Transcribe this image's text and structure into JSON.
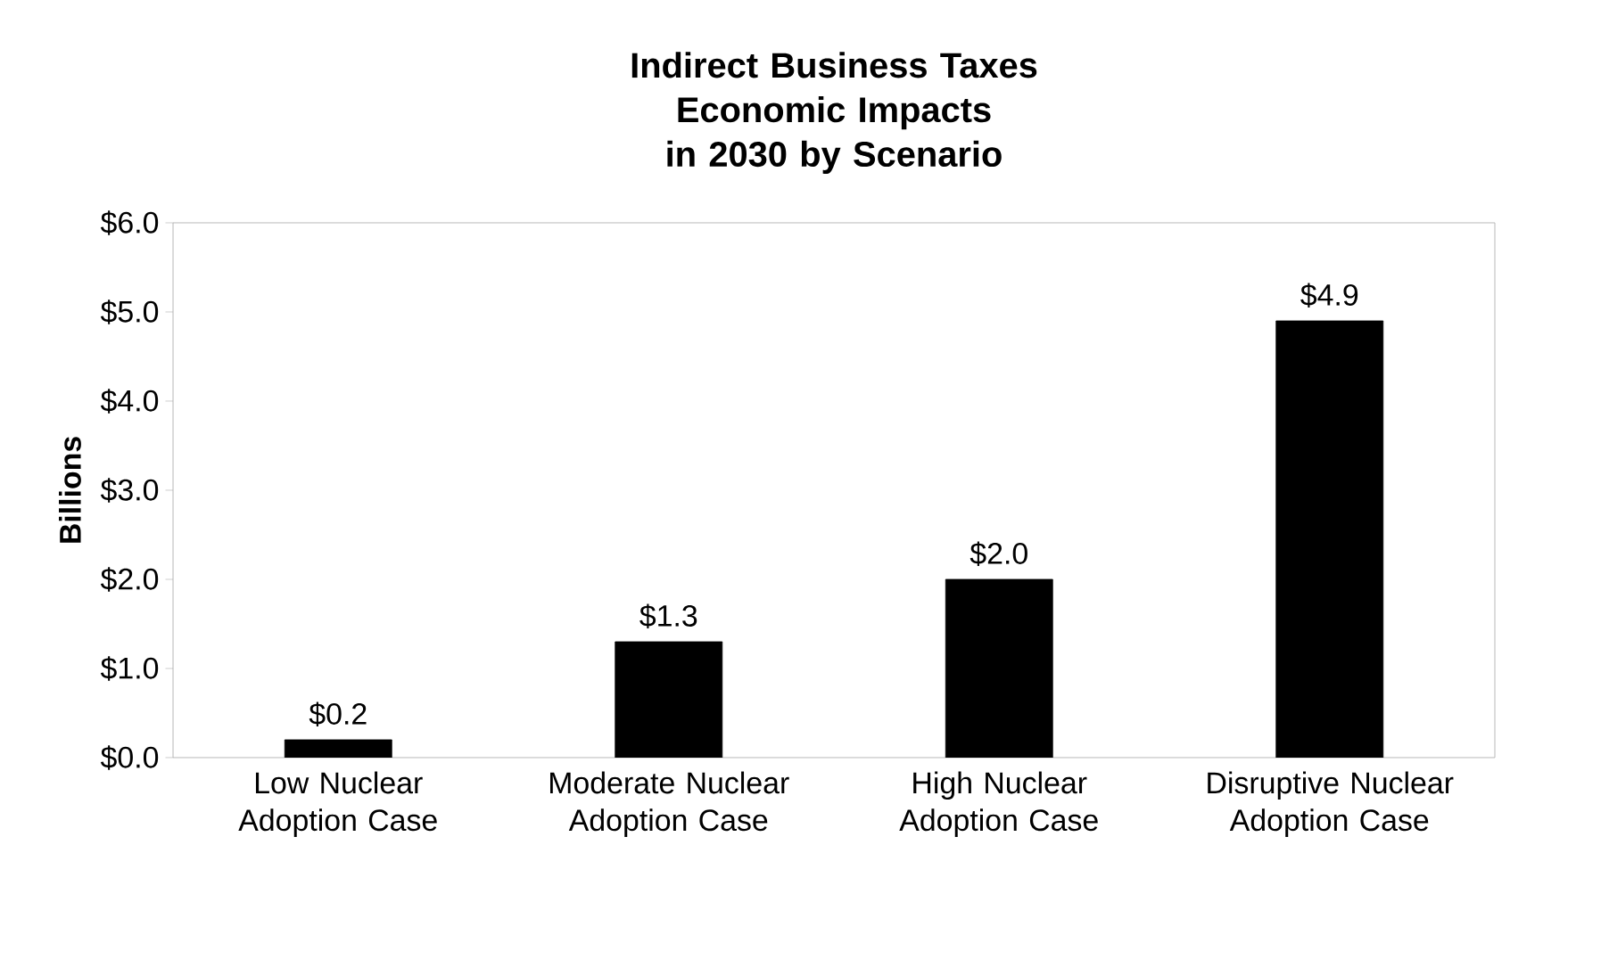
{
  "chart_data": {
    "type": "bar",
    "title": "Indirect Business Taxes Economic Impacts in 2030 by Scenario",
    "ylabel": "Billions",
    "categories": [
      "Low Nuclear Adoption Case",
      "Moderate Nuclear Adoption Case",
      "High Nuclear Adoption Case",
      "Disruptive Nuclear Adoption Case"
    ],
    "values": [
      0.2,
      1.3,
      2.0,
      4.9
    ],
    "value_labels": [
      "$0.2",
      "$1.3",
      "$2.0",
      "$4.9"
    ],
    "color": "#000000",
    "ylim": [
      0,
      6
    ],
    "yticks": [
      {
        "value": 0,
        "label": "$0.0"
      },
      {
        "value": 1,
        "label": "$1.0"
      },
      {
        "value": 2,
        "label": "$2.0"
      },
      {
        "value": 3,
        "label": "$3.0"
      },
      {
        "value": 4,
        "label": "$4.0"
      },
      {
        "value": 5,
        "label": "$5.0"
      },
      {
        "value": 6,
        "label": "$6.0"
      }
    ]
  }
}
